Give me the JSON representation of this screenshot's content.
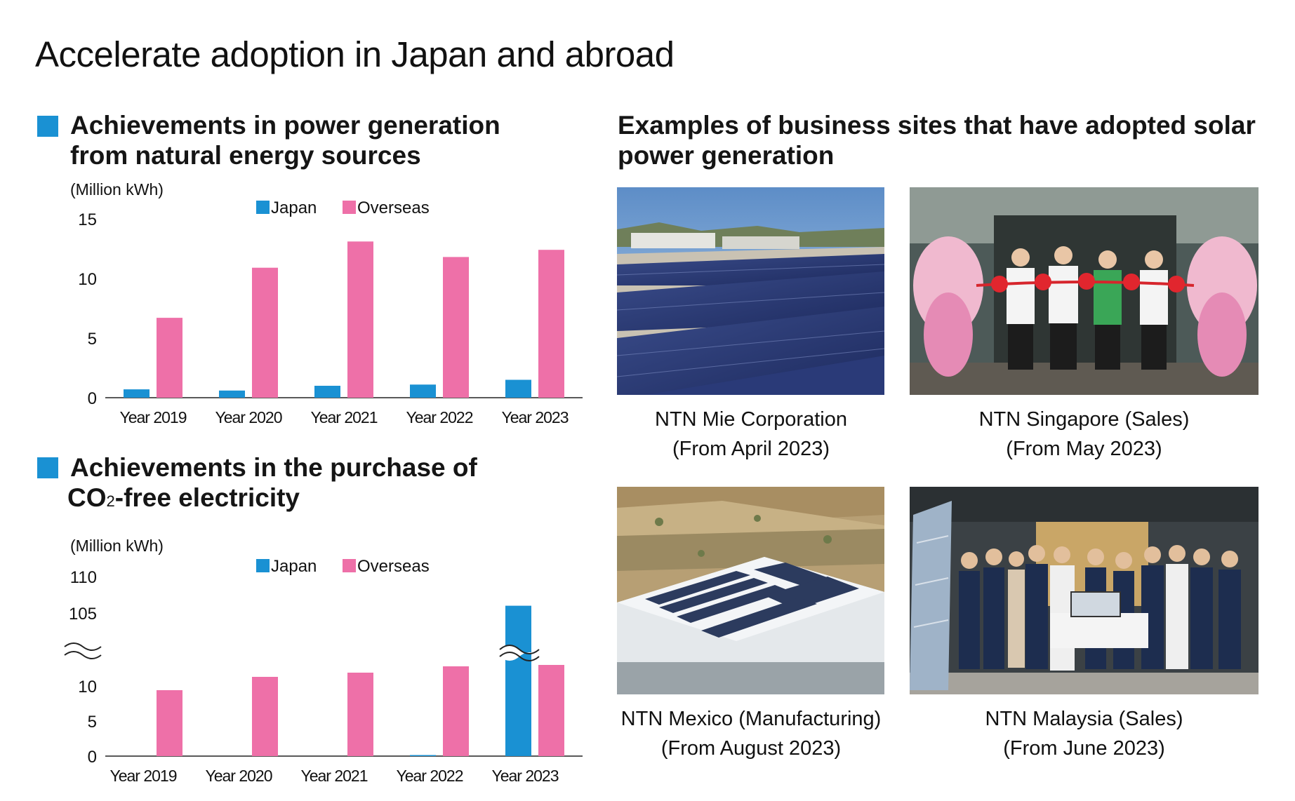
{
  "page": {
    "title": "Accelerate adoption in Japan and abroad"
  },
  "colors": {
    "japan": "#1a91d3",
    "overseas": "#ee70a8",
    "square": "#1a91d3"
  },
  "chart1": {
    "heading_line1": "Achievements in power generation",
    "heading_line2": "from natural energy sources"
  },
  "chart2": {
    "heading_line1": "Achievements in the purchase of",
    "heading_line2_a": "CO",
    "heading_line2_sub": "2",
    "heading_line2_b": "-free electricity"
  },
  "chart_data": [
    {
      "type": "bar",
      "title": "Achievements in power generation from natural energy sources",
      "unit_label": "(Million kWh)",
      "categories": [
        "Year 2019",
        "Year 2020",
        "Year 2021",
        "Year 2022",
        "Year 2023"
      ],
      "series": [
        {
          "name": "Japan",
          "values": [
            0.7,
            0.6,
            1.0,
            1.1,
            1.5
          ]
        },
        {
          "name": "Overseas",
          "values": [
            6.7,
            10.9,
            13.1,
            11.8,
            12.4
          ]
        }
      ],
      "yticks": [
        "0",
        "5",
        "10",
        "15"
      ],
      "ylim": [
        0,
        15
      ],
      "legend": "top-center",
      "grid": false
    },
    {
      "type": "bar",
      "title": "Achievements in the purchase of CO2-free electricity",
      "unit_label": "(Million kWh)",
      "categories": [
        "Year 2019",
        "Year 2020",
        "Year 2021",
        "Year 2022",
        "Year 2023"
      ],
      "series": [
        {
          "name": "Japan",
          "values": [
            0,
            0,
            0,
            0.1,
            106
          ]
        },
        {
          "name": "Overseas",
          "values": [
            9.4,
            11.3,
            11.9,
            12.8,
            13.0
          ]
        }
      ],
      "yticks": [
        "0",
        "5",
        "10",
        "105",
        "110"
      ],
      "axis_break": [
        15,
        100
      ],
      "ylim": [
        0,
        110
      ],
      "legend": "top-center",
      "grid": false
    }
  ],
  "sites": {
    "heading_line1": "Examples of business sites that have adopted solar",
    "heading_line2": "power generation",
    "items": [
      {
        "name": "NTN Mie Corporation",
        "date": "(From April 2023)",
        "photo": "solar-panels-photo"
      },
      {
        "name": "NTN Singapore (Sales)",
        "date": "(From May 2023)",
        "photo": "ceremony-lion-dance-photo"
      },
      {
        "name": "NTN Mexico (Manufacturing)",
        "date": "(From August 2023)",
        "photo": "factory-roof-aerial-photo"
      },
      {
        "name": "NTN Malaysia (Sales)",
        "date": "(From June 2023)",
        "photo": "group-photo"
      }
    ]
  }
}
